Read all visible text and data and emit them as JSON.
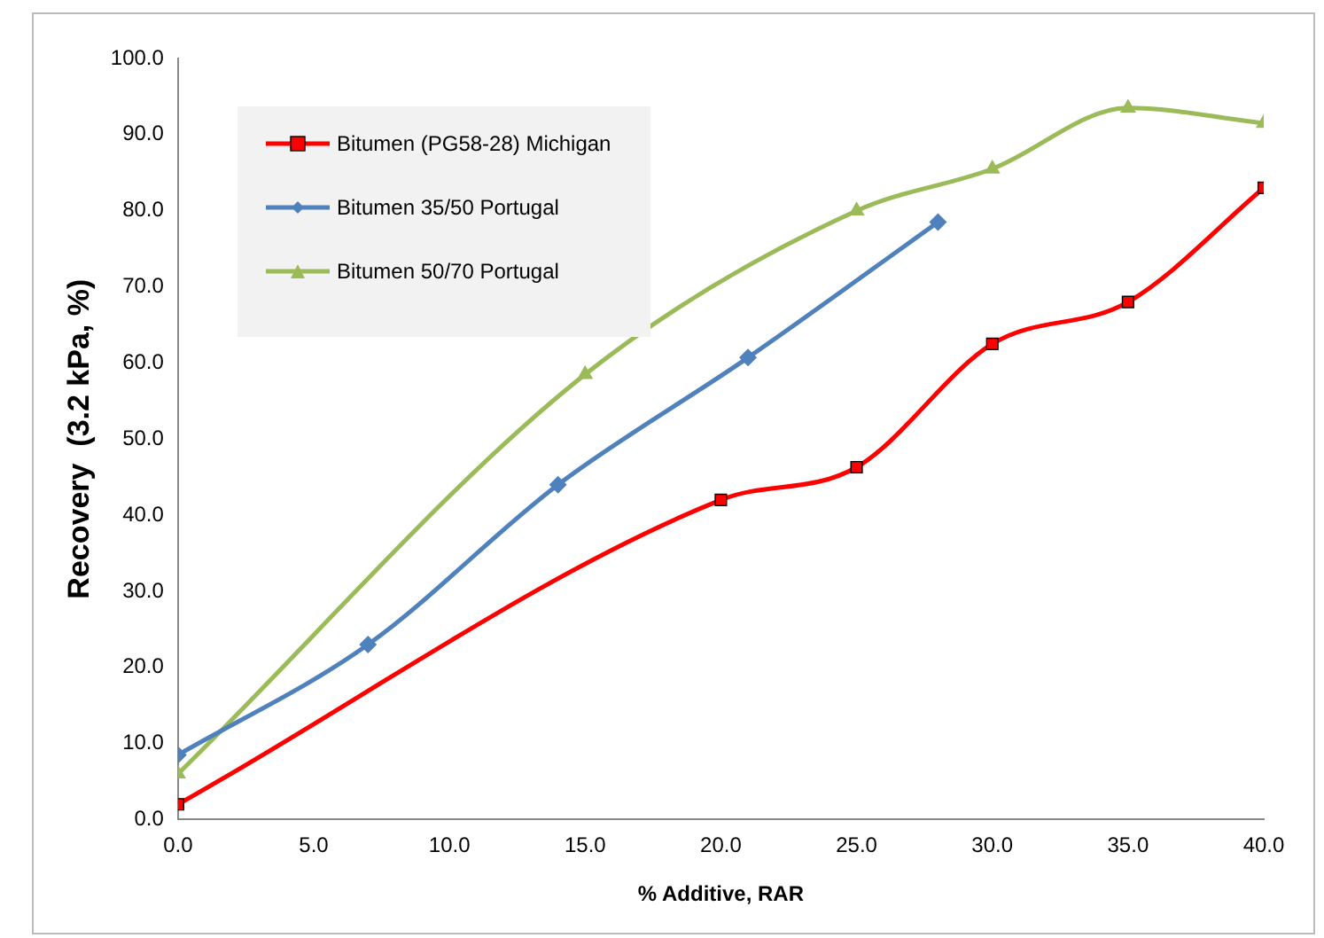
{
  "chart_data": {
    "type": "line",
    "xlabel": "% Additive, RAR",
    "ylabel": "Recovery  (3.2 kPa, %)",
    "xlim": [
      0,
      40
    ],
    "xticks": [
      {
        "value": 0,
        "label": "0.0"
      },
      {
        "value": 5,
        "label": "5.0"
      },
      {
        "value": 10,
        "label": "10.0"
      },
      {
        "value": 15,
        "label": "15.0"
      },
      {
        "value": 20,
        "label": "20.0"
      },
      {
        "value": 25,
        "label": "25.0"
      },
      {
        "value": 30,
        "label": "30.0"
      },
      {
        "value": 35,
        "label": "35.0"
      },
      {
        "value": 40,
        "label": "40.0"
      }
    ],
    "ylim": [
      0,
      100
    ],
    "yticks": [
      {
        "value": 0,
        "label": "0.0"
      },
      {
        "value": 10,
        "label": "10.0"
      },
      {
        "value": 20,
        "label": "20.0"
      },
      {
        "value": 30,
        "label": "30.0"
      },
      {
        "value": 40,
        "label": "40.0"
      },
      {
        "value": 50,
        "label": "50.0"
      },
      {
        "value": 60,
        "label": "60.0"
      },
      {
        "value": 70,
        "label": "70.0"
      },
      {
        "value": 80,
        "label": "80.0"
      },
      {
        "value": 90,
        "label": "90.0"
      },
      {
        "value": 100,
        "label": "100.0"
      }
    ],
    "grid": false,
    "legend": "top left",
    "line_style": "solid",
    "series": [
      {
        "name": "Bitumen (PG58-28) Michigan",
        "color": "#ff0000",
        "marker": "square",
        "x": [
          0,
          20,
          25,
          30,
          35,
          40
        ],
        "values": [
          2,
          42,
          46.3,
          62.5,
          68,
          83
        ]
      },
      {
        "name": "Bitumen 35/50 Portugal",
        "color": "#4f81bd",
        "marker": "diamond",
        "x": [
          0,
          7,
          14,
          21,
          28
        ],
        "values": [
          8.5,
          23,
          44,
          60.7,
          78.5
        ]
      },
      {
        "name": "Bitumen 50/70 Portugal",
        "color": "#9bbb59",
        "marker": "triangle",
        "x": [
          0,
          15,
          25,
          30,
          35,
          40
        ],
        "values": [
          6,
          58.5,
          80,
          85.5,
          93.5,
          91.5
        ]
      }
    ]
  }
}
